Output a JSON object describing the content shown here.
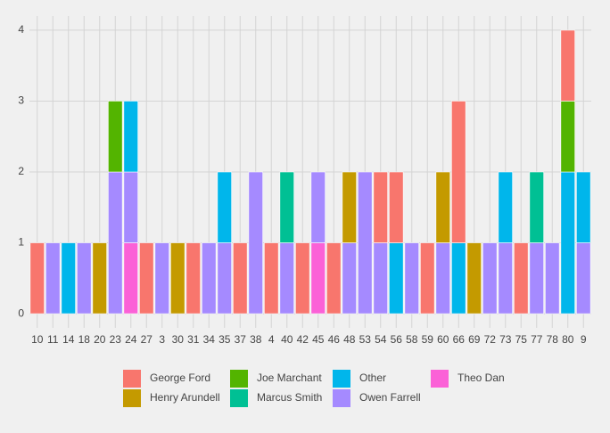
{
  "chart_data": {
    "type": "stacked_bar",
    "categories": [
      "10",
      "11",
      "14",
      "18",
      "20",
      "23",
      "24",
      "27",
      "3",
      "30",
      "31",
      "34",
      "35",
      "37",
      "38",
      "4",
      "40",
      "42",
      "45",
      "46",
      "48",
      "53",
      "54",
      "56",
      "58",
      "59",
      "60",
      "66",
      "69",
      "72",
      "73",
      "75",
      "77",
      "78",
      "80",
      "9"
    ],
    "series": [
      {
        "name": "George Ford",
        "color": "#F8766D",
        "values": [
          1,
          0,
          0,
          0,
          0,
          0,
          0,
          1,
          0,
          0,
          1,
          0,
          0,
          1,
          0,
          1,
          0,
          1,
          0,
          1,
          0,
          0,
          1,
          1,
          0,
          1,
          0,
          2,
          0,
          0,
          0,
          1,
          0,
          0,
          1,
          0
        ]
      },
      {
        "name": "Henry Arundell",
        "color": "#C49A00",
        "values": [
          0,
          0,
          0,
          0,
          1,
          0,
          0,
          0,
          0,
          1,
          0,
          0,
          0,
          0,
          0,
          0,
          0,
          0,
          0,
          0,
          1,
          0,
          0,
          0,
          0,
          0,
          1,
          0,
          1,
          0,
          0,
          0,
          0,
          0,
          0,
          0
        ]
      },
      {
        "name": "Joe Marchant",
        "color": "#53B400",
        "values": [
          0,
          0,
          0,
          0,
          0,
          1,
          0,
          0,
          0,
          0,
          0,
          0,
          0,
          0,
          0,
          0,
          0,
          0,
          0,
          0,
          0,
          0,
          0,
          0,
          0,
          0,
          0,
          0,
          0,
          0,
          0,
          0,
          0,
          0,
          1,
          0
        ]
      },
      {
        "name": "Marcus Smith",
        "color": "#00C094",
        "values": [
          0,
          0,
          0,
          0,
          0,
          0,
          0,
          0,
          0,
          0,
          0,
          0,
          0,
          0,
          0,
          0,
          1,
          0,
          0,
          0,
          0,
          0,
          0,
          0,
          0,
          0,
          0,
          0,
          0,
          0,
          0,
          0,
          1,
          0,
          0,
          0
        ]
      },
      {
        "name": "Other",
        "color": "#00B6EB",
        "values": [
          0,
          0,
          1,
          0,
          0,
          0,
          1,
          0,
          0,
          0,
          0,
          0,
          1,
          0,
          0,
          0,
          0,
          0,
          0,
          0,
          0,
          0,
          0,
          1,
          0,
          0,
          0,
          1,
          0,
          0,
          1,
          0,
          0,
          0,
          2,
          1
        ]
      },
      {
        "name": "Owen Farrell",
        "color": "#A58AFF",
        "values": [
          0,
          1,
          0,
          1,
          0,
          2,
          1,
          0,
          1,
          0,
          0,
          1,
          1,
          0,
          2,
          0,
          1,
          0,
          1,
          0,
          1,
          2,
          1,
          0,
          1,
          0,
          1,
          0,
          0,
          1,
          1,
          0,
          1,
          1,
          0,
          1
        ]
      },
      {
        "name": "Theo Dan",
        "color": "#FB61D7",
        "values": [
          0,
          0,
          0,
          0,
          0,
          0,
          1,
          0,
          0,
          0,
          0,
          0,
          0,
          0,
          0,
          0,
          0,
          0,
          1,
          0,
          0,
          0,
          0,
          0,
          0,
          0,
          0,
          0,
          0,
          0,
          0,
          0,
          0,
          0,
          0,
          0
        ]
      }
    ],
    "ylim": [
      -0.2,
      4.2
    ],
    "yticks": [
      0,
      1,
      2,
      3,
      4
    ],
    "grid": true,
    "legend": "bottom"
  }
}
